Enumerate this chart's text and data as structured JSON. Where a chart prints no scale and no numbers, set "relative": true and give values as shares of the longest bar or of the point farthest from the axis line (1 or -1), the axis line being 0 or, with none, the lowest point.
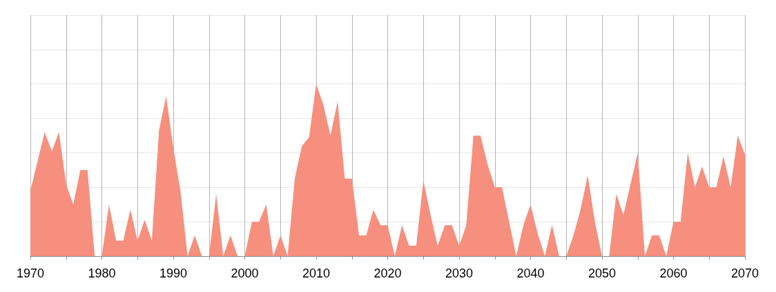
{
  "chart_data": {
    "type": "area",
    "relative": true,
    "grid": true,
    "xlim": [
      1970,
      2070
    ],
    "xticks": [
      1970,
      {
        "value": 1975,
        "label": null
      },
      1980,
      {
        "value": 1985,
        "label": null
      },
      1990,
      {
        "value": 1995,
        "label": null
      },
      2000,
      {
        "value": 2005,
        "label": null
      },
      2010,
      {
        "value": 2015,
        "label": null
      },
      2020,
      {
        "value": 2025,
        "label": null
      },
      2030,
      {
        "value": 2035,
        "label": null
      },
      2040,
      {
        "value": 2045,
        "label": null
      },
      2050,
      {
        "value": 2055,
        "label": null
      },
      2060,
      {
        "value": 2065,
        "label": null
      },
      2070
    ],
    "x": [
      1970,
      1971,
      1972,
      1973,
      1974,
      1975,
      1976,
      1977,
      1978,
      1979,
      1980,
      1981,
      1982,
      1983,
      1984,
      1985,
      1986,
      1987,
      1988,
      1989,
      1990,
      1991,
      1992,
      1993,
      1994,
      1995,
      1996,
      1997,
      1998,
      1999,
      2000,
      2001,
      2002,
      2003,
      2004,
      2005,
      2006,
      2007,
      2008,
      2009,
      2010,
      2011,
      2012,
      2013,
      2014,
      2015,
      2016,
      2017,
      2018,
      2019,
      2020,
      2021,
      2022,
      2023,
      2024,
      2025,
      2026,
      2027,
      2028,
      2029,
      2030,
      2031,
      2032,
      2033,
      2034,
      2035,
      2036,
      2037,
      2038,
      2039,
      2040,
      2041,
      2042,
      2043,
      2044,
      2045,
      2046,
      2047,
      2048,
      2049,
      2050,
      2051,
      2052,
      2053,
      2054,
      2055,
      2056,
      2057,
      2058,
      2059,
      2060,
      2061,
      2062,
      2063,
      2064,
      2065,
      2066,
      2067,
      2068,
      2069,
      2070
    ],
    "series": [
      {
        "color": "#f68f7e",
        "values": [
          0.38,
          0.55,
          0.72,
          0.61,
          0.72,
          0.42,
          0.3,
          0.5,
          0.5,
          0,
          0,
          0.3,
          0.09,
          0.09,
          0.27,
          0.09,
          0.21,
          0.09,
          0.73,
          0.93,
          0.63,
          0.38,
          0,
          0.12,
          0,
          0,
          0.36,
          0,
          0.12,
          0,
          0,
          0.2,
          0.2,
          0.3,
          0,
          0.12,
          0,
          0.45,
          0.64,
          0.69,
          1,
          0.88,
          0.7,
          0.9,
          0.45,
          0.45,
          0.12,
          0.12,
          0.27,
          0.18,
          0.18,
          0,
          0.18,
          0.06,
          0.06,
          0.44,
          0.24,
          0.06,
          0.18,
          0.18,
          0.06,
          0.18,
          0.7,
          0.7,
          0.53,
          0.4,
          0.4,
          0.2,
          0,
          0.18,
          0.3,
          0.13,
          0,
          0.18,
          0,
          0,
          0.12,
          0.27,
          0.47,
          0.2,
          0,
          0,
          0.36,
          0.24,
          0.42,
          0.6,
          0,
          0.12,
          0.12,
          0,
          0.2,
          0.2,
          0.6,
          0.4,
          0.52,
          0.4,
          0.4,
          0.58,
          0.4,
          0.7,
          0.59
        ]
      }
    ]
  }
}
